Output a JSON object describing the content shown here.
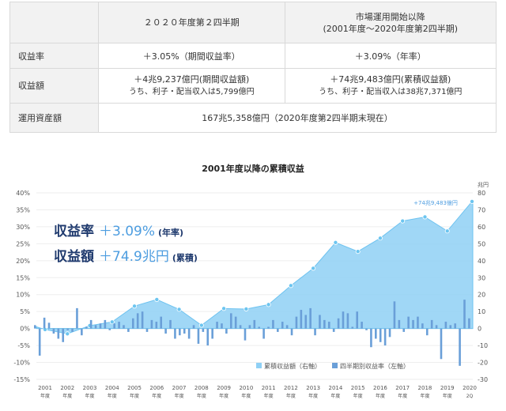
{
  "table": {
    "col_header_quarter": "２０２０年度第２四半期",
    "col_header_since_line1": "市場運用開始以降",
    "col_header_since_line2": "(2001年度～2020年度第2四半期)",
    "rows": [
      {
        "label": "収益率",
        "quarter": "＋3.05%（期間収益率）",
        "since": "＋3.09%（年率）"
      },
      {
        "label": "収益額",
        "quarter": "＋4兆9,237億円(期間収益額)",
        "quarter_sub": "うち、利子・配当収入は5,799億円",
        "since": "＋74兆9,483億円(累積収益額)",
        "since_sub": "うち、利子・配当収入は38兆7,371億円"
      },
      {
        "label": "運用資産額",
        "value": "167兆5,358億円（2020年度第2四半期末現在）"
      }
    ]
  },
  "chart_title": "2001年度以降の累積収益",
  "overlay": {
    "rate_label": "収益率",
    "rate_value": "＋3.09%",
    "rate_unit": "(年率)",
    "amount_label": "収益額",
    "amount_value": "＋74.9兆円",
    "amount_unit": "(累積)"
  },
  "annotation": "+74兆9,483億円",
  "right_axis_unit": "兆円",
  "colors": {
    "area": "#8fd0f5",
    "area_line": "#6ec3f0",
    "marker": "#6cc5f0",
    "bar": "#6a9fd8"
  },
  "chart_data": {
    "type": "area+bar",
    "y_left_ticks": [
      "40%",
      "35%",
      "30%",
      "25%",
      "20%",
      "15%",
      "10%",
      "5%",
      "0%",
      "-5%",
      "-10%",
      "-15%"
    ],
    "y_left_range": [
      -15,
      40
    ],
    "y_right_ticks": [
      "80",
      "70",
      "60",
      "50",
      "40",
      "30",
      "20",
      "10",
      "0",
      "-10",
      "-20",
      "-30"
    ],
    "y_right_range": [
      -30,
      80
    ],
    "x_tick_labels": [
      [
        "2001",
        "年度"
      ],
      [
        "2002",
        "年度"
      ],
      [
        "2003",
        "年度"
      ],
      [
        "2004",
        "年度"
      ],
      [
        "2005",
        "年度"
      ],
      [
        "2006",
        "年度"
      ],
      [
        "2007",
        "年度"
      ],
      [
        "2008",
        "年度"
      ],
      [
        "2009",
        "年度"
      ],
      [
        "2010",
        "年度"
      ],
      [
        "2011",
        "年度"
      ],
      [
        "2012",
        "年度"
      ],
      [
        "2013",
        "年度"
      ],
      [
        "2014",
        "年度"
      ],
      [
        "2015",
        "年度"
      ],
      [
        "2016",
        "年度"
      ],
      [
        "2017",
        "年度"
      ],
      [
        "2018",
        "年度"
      ],
      [
        "2019",
        "年度"
      ],
      [
        "2020",
        "2Q"
      ]
    ],
    "series": [
      {
        "name": "累積収益額（右軸）",
        "axis": "right",
        "values_by_fiscal_year_end": [
          -0.6,
          -3.1,
          1.7,
          3.9,
          13.2,
          17.1,
          11.3,
          1.9,
          11.8,
          11.5,
          14.1,
          25.3,
          35.5,
          50.7,
          45.4,
          53.3,
          63.4,
          65.8,
          57.5,
          74.9
        ]
      },
      {
        "name": "四半期別収益率（左軸）",
        "axis": "left",
        "quarterly_values": [
          1.0,
          -8.0,
          3.2,
          1.7,
          -1.5,
          -3.0,
          -4.0,
          -0.5,
          -1.0,
          6.0,
          -2.0,
          0.5,
          2.5,
          1.0,
          1.5,
          2.5,
          -0.5,
          1.5,
          2.0,
          1.0,
          -1.0,
          3.0,
          4.5,
          5.0,
          -1.0,
          2.5,
          2.0,
          3.5,
          -1.5,
          2.5,
          -3.0,
          -2.0,
          -1.5,
          -3.0,
          1.0,
          -4.5,
          -1.0,
          -5.0,
          -3.0,
          2.0,
          1.5,
          -1.5,
          4.5,
          3.5,
          1.0,
          -3.5,
          1.0,
          2.5,
          0.5,
          -3.0,
          0.5,
          2.5,
          -1.0,
          2.0,
          1.0,
          -2.0,
          3.5,
          5.5,
          4.0,
          6.0,
          -2.0,
          4.0,
          2.5,
          2.0,
          -1.0,
          3.0,
          5.0,
          4.5,
          0.5,
          5.0,
          2.0,
          -0.5,
          -5.5,
          -3.0,
          -4.0,
          -5.0,
          -2.5,
          8.0,
          2.5,
          -1.0,
          3.5,
          2.5,
          3.5,
          1.5,
          -2.0,
          2.5,
          1.0,
          -9.0,
          2.0,
          1.0,
          1.5,
          -11.0,
          8.5,
          3.0
        ]
      }
    ]
  }
}
